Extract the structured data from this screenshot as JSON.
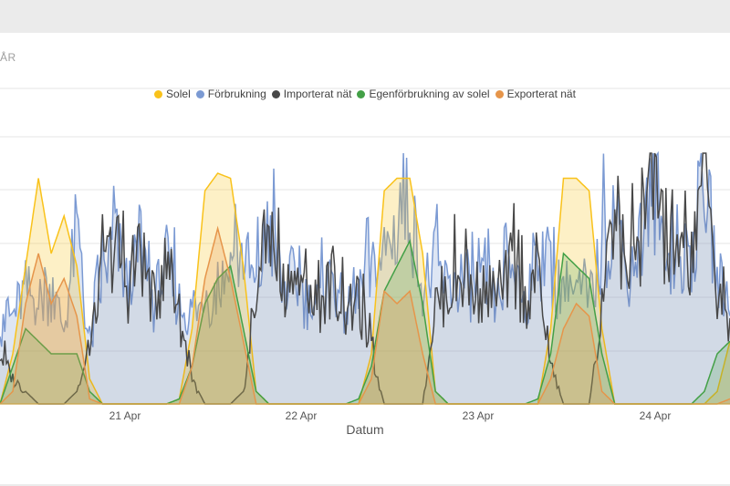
{
  "header": {
    "tab_label": "ÅR"
  },
  "chart_data": {
    "type": "area",
    "title": "",
    "xlabel": "Datum",
    "ylabel": "",
    "x_ticks": [
      "21 Apr",
      "22 Apr",
      "23 Apr",
      "24 Apr"
    ],
    "grid": true,
    "legend_position": "top",
    "series": [
      {
        "name": "Solel",
        "color": "#f9c21b",
        "values": [
          0,
          0.2,
          0.55,
          0.9,
          0.6,
          0.75,
          0.55,
          0.1,
          0,
          0,
          0,
          0,
          0,
          0,
          0.02,
          0.3,
          0.85,
          0.92,
          0.9,
          0.55,
          0.05,
          0,
          0,
          0,
          0,
          0,
          0,
          0,
          0,
          0.2,
          0.85,
          0.9,
          0.9,
          0.6,
          0.05,
          0,
          0,
          0,
          0,
          0,
          0,
          0,
          0,
          0.3,
          0.9,
          0.9,
          0.85,
          0.3,
          0,
          0,
          0,
          0,
          0,
          0,
          0,
          0,
          0.05,
          0.25
        ]
      },
      {
        "name": "Förbrukning",
        "color": "#7b9ad3",
        "values": [
          0.3,
          0.35,
          0.45,
          0.4,
          0.45,
          0.3,
          0.7,
          0.2,
          0.5,
          0.65,
          0.45,
          0.6,
          0.4,
          0.55,
          0.4,
          0.35,
          0.4,
          0.45,
          0.55,
          0.6,
          0.45,
          0.7,
          0.45,
          0.5,
          0.4,
          0.4,
          0.5,
          0.35,
          0.4,
          0.5,
          0.6,
          0.7,
          0.8,
          0.45,
          0.55,
          0.45,
          0.5,
          0.45,
          0.45,
          0.4,
          0.55,
          0.4,
          0.6,
          0.5,
          0.45,
          0.45,
          0.4,
          0.6,
          0.75,
          0.5,
          0.65,
          0.85,
          0.6,
          0.55,
          0.6,
          0.9,
          0.5,
          0.4
        ]
      },
      {
        "name": "Importerat nät",
        "color": "#484848",
        "values": [
          0.2,
          0.1,
          0.05,
          0,
          0,
          0,
          0.05,
          0.2,
          0.5,
          0.65,
          0.45,
          0.6,
          0.4,
          0.55,
          0.35,
          0.1,
          0,
          0,
          0,
          0.05,
          0.4,
          0.7,
          0.45,
          0.5,
          0.4,
          0.4,
          0.5,
          0.35,
          0.4,
          0.2,
          0,
          0,
          0,
          0,
          0.4,
          0.45,
          0.5,
          0.45,
          0.45,
          0.4,
          0.55,
          0.4,
          0.55,
          0.15,
          0,
          0,
          0,
          0.35,
          0.75,
          0.5,
          0.65,
          0.85,
          0.6,
          0.55,
          0.6,
          0.9,
          0.45,
          0.3
        ]
      },
      {
        "name": "Egenförbrukning av solel",
        "color": "#43a047",
        "values": [
          0,
          0.15,
          0.3,
          0.25,
          0.2,
          0.2,
          0.2,
          0.05,
          0,
          0,
          0,
          0,
          0,
          0,
          0.02,
          0.15,
          0.4,
          0.5,
          0.55,
          0.3,
          0.05,
          0,
          0,
          0,
          0,
          0,
          0,
          0,
          0.02,
          0.15,
          0.45,
          0.55,
          0.65,
          0.4,
          0.05,
          0,
          0,
          0,
          0,
          0,
          0,
          0,
          0.02,
          0.2,
          0.6,
          0.55,
          0.5,
          0.2,
          0,
          0,
          0,
          0,
          0,
          0,
          0,
          0.05,
          0.2,
          0.25
        ]
      },
      {
        "name": "Exporterat nät",
        "color": "#e6954a",
        "values": [
          0,
          0.05,
          0.4,
          0.6,
          0.4,
          0.5,
          0.35,
          0.02,
          0,
          0,
          0,
          0,
          0,
          0,
          0,
          0.15,
          0.5,
          0.7,
          0.5,
          0.25,
          0,
          0,
          0,
          0,
          0,
          0,
          0,
          0,
          0,
          0.1,
          0.45,
          0.4,
          0.45,
          0.2,
          0,
          0,
          0,
          0,
          0,
          0,
          0,
          0,
          0,
          0.1,
          0.3,
          0.4,
          0.35,
          0.05,
          0,
          0,
          0,
          0,
          0,
          0,
          0,
          0,
          0,
          0.02
        ]
      }
    ]
  }
}
